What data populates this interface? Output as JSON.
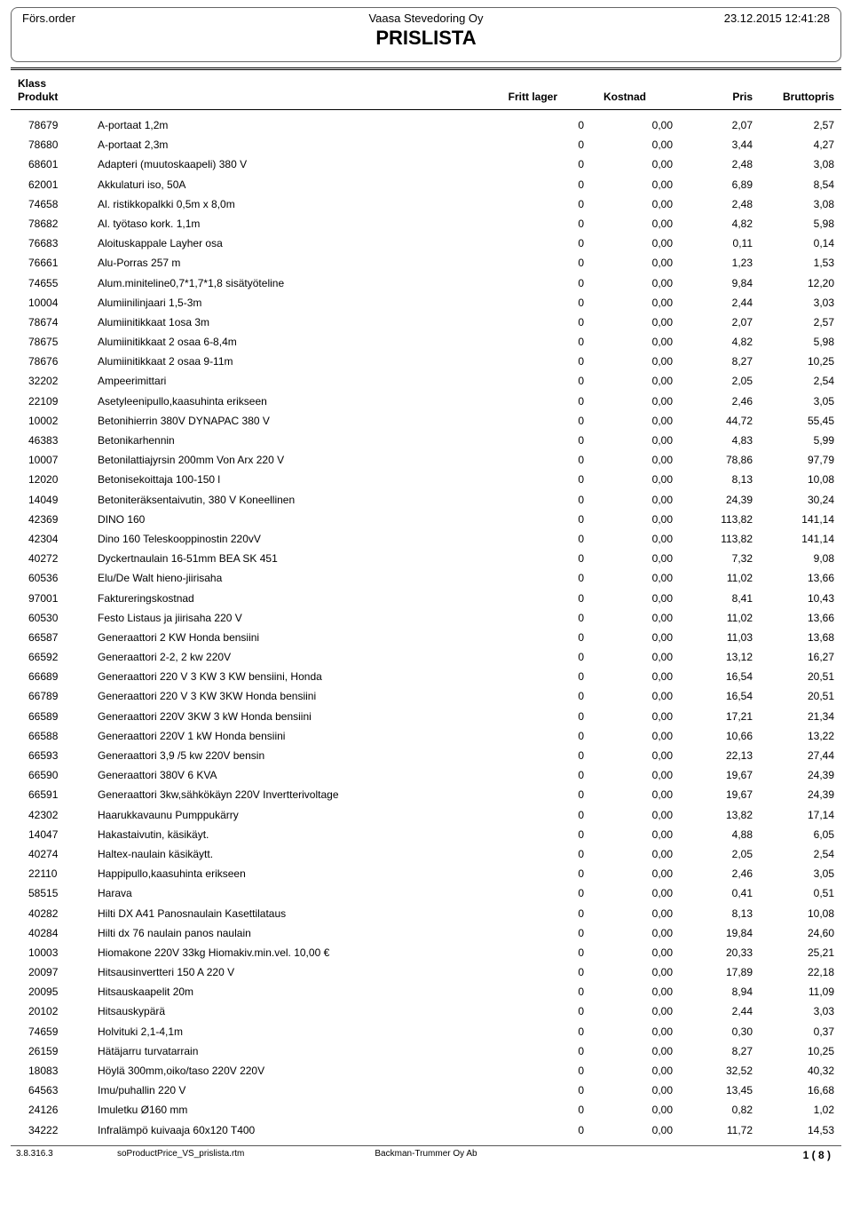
{
  "header": {
    "left": "Förs.order",
    "company": "Vaasa Stevedoring Oy",
    "title": "PRISLISTA",
    "datetime": "23.12.2015 12:41:28"
  },
  "columns": {
    "klass": "Klass",
    "produkt": "Produkt",
    "fritt": "Fritt lager",
    "kostnad": "Kostnad",
    "pris": "Pris",
    "brutto": "Bruttopris"
  },
  "rows": [
    {
      "code": "78679",
      "name": "A-portaat 1,2m",
      "fritt": "0",
      "kost": "0,00",
      "pris": "2,07",
      "brutto": "2,57"
    },
    {
      "code": "78680",
      "name": "A-portaat 2,3m",
      "fritt": "0",
      "kost": "0,00",
      "pris": "3,44",
      "brutto": "4,27"
    },
    {
      "code": "68601",
      "name": "Adapteri (muutoskaapeli) 380 V",
      "fritt": "0",
      "kost": "0,00",
      "pris": "2,48",
      "brutto": "3,08"
    },
    {
      "code": "62001",
      "name": "Akkulaturi iso, 50A",
      "fritt": "0",
      "kost": "0,00",
      "pris": "6,89",
      "brutto": "8,54"
    },
    {
      "code": "74658",
      "name": "Al. ristikkopalkki  0,5m x 8,0m",
      "fritt": "0",
      "kost": "0,00",
      "pris": "2,48",
      "brutto": "3,08"
    },
    {
      "code": "78682",
      "name": "Al. työtaso kork. 1,1m",
      "fritt": "0",
      "kost": "0,00",
      "pris": "4,82",
      "brutto": "5,98"
    },
    {
      "code": "76683",
      "name": "Aloituskappale Layher osa",
      "fritt": "0",
      "kost": "0,00",
      "pris": "0,11",
      "brutto": "0,14"
    },
    {
      "code": "76661",
      "name": "Alu-Porras 257 m",
      "fritt": "0",
      "kost": "0,00",
      "pris": "1,23",
      "brutto": "1,53"
    },
    {
      "code": "74655",
      "name": "Alum.miniteline0,7*1,7*1,8  sisätyöteline",
      "fritt": "0",
      "kost": "0,00",
      "pris": "9,84",
      "brutto": "12,20"
    },
    {
      "code": "10004",
      "name": "Alumiinilinjaari 1,5-3m",
      "fritt": "0",
      "kost": "0,00",
      "pris": "2,44",
      "brutto": "3,03"
    },
    {
      "code": "78674",
      "name": "Alumiinitikkaat  1osa 3m",
      "fritt": "0",
      "kost": "0,00",
      "pris": "2,07",
      "brutto": "2,57"
    },
    {
      "code": "78675",
      "name": "Alumiinitikkaat  2 osaa 6-8,4m",
      "fritt": "0",
      "kost": "0,00",
      "pris": "4,82",
      "brutto": "5,98"
    },
    {
      "code": "78676",
      "name": "Alumiinitikkaat  2 osaa 9-11m",
      "fritt": "0",
      "kost": "0,00",
      "pris": "8,27",
      "brutto": "10,25"
    },
    {
      "code": "32202",
      "name": "Ampeerimittari",
      "fritt": "0",
      "kost": "0,00",
      "pris": "2,05",
      "brutto": "2,54"
    },
    {
      "code": "22109",
      "name": "Asetyleenipullo,kaasuhinta erikseen",
      "fritt": "0",
      "kost": "0,00",
      "pris": "2,46",
      "brutto": "3,05"
    },
    {
      "code": "10002",
      "name": "Betonihierrin 380V   DYNAPAC 380 V",
      "fritt": "0",
      "kost": "0,00",
      "pris": "44,72",
      "brutto": "55,45"
    },
    {
      "code": "46383",
      "name": "Betonikarhennin",
      "fritt": "0",
      "kost": "0,00",
      "pris": "4,83",
      "brutto": "5,99"
    },
    {
      "code": "10007",
      "name": "Betonilattiajyrsin 200mm  Von Arx 220 V",
      "fritt": "0",
      "kost": "0,00",
      "pris": "78,86",
      "brutto": "97,79"
    },
    {
      "code": "12020",
      "name": "Betonisekoittaja 100-150 l",
      "fritt": "0",
      "kost": "0,00",
      "pris": "8,13",
      "brutto": "10,08"
    },
    {
      "code": "14049",
      "name": "Betoniteräksentaivutin, 380 V  Koneellinen",
      "fritt": "0",
      "kost": "0,00",
      "pris": "24,39",
      "brutto": "30,24"
    },
    {
      "code": "42369",
      "name": "DINO 160",
      "fritt": "0",
      "kost": "0,00",
      "pris": "113,82",
      "brutto": "141,14"
    },
    {
      "code": "42304",
      "name": "Dino 160 Teleskooppinostin  220vV",
      "fritt": "0",
      "kost": "0,00",
      "pris": "113,82",
      "brutto": "141,14"
    },
    {
      "code": "40272",
      "name": "Dyckertnaulain 16-51mm  BEA SK 451",
      "fritt": "0",
      "kost": "0,00",
      "pris": "7,32",
      "brutto": "9,08"
    },
    {
      "code": "60536",
      "name": "Elu/De Walt hieno-jiirisaha",
      "fritt": "0",
      "kost": "0,00",
      "pris": "11,02",
      "brutto": "13,66"
    },
    {
      "code": "97001",
      "name": "Faktureringskostnad",
      "fritt": "0",
      "kost": "0,00",
      "pris": "8,41",
      "brutto": "10,43"
    },
    {
      "code": "60530",
      "name": "Festo Listaus ja jiirisaha  220 V",
      "fritt": "0",
      "kost": "0,00",
      "pris": "11,02",
      "brutto": "13,66"
    },
    {
      "code": "66587",
      "name": "Generaattori 2 KW  Honda bensiini",
      "fritt": "0",
      "kost": "0,00",
      "pris": "11,03",
      "brutto": "13,68"
    },
    {
      "code": "66592",
      "name": "Generaattori 2-2, 2 kw 220V",
      "fritt": "0",
      "kost": "0,00",
      "pris": "13,12",
      "brutto": "16,27"
    },
    {
      "code": "66689",
      "name": "Generaattori 220 V  3 KW     3 KW bensiini, Honda",
      "fritt": "0",
      "kost": "0,00",
      "pris": "16,54",
      "brutto": "20,51"
    },
    {
      "code": "66789",
      "name": "Generaattori 220 V 3 KW  3KW Honda bensiini",
      "fritt": "0",
      "kost": "0,00",
      "pris": "16,54",
      "brutto": "20,51"
    },
    {
      "code": "66589",
      "name": "Generaattori 220V    3KW  3 kW Honda bensiini",
      "fritt": "0",
      "kost": "0,00",
      "pris": "17,21",
      "brutto": "21,34"
    },
    {
      "code": "66588",
      "name": "Generaattori 220V  1 kW Honda bensiini",
      "fritt": "0",
      "kost": "0,00",
      "pris": "10,66",
      "brutto": "13,22"
    },
    {
      "code": "66593",
      "name": "Generaattori 3,9 /5 kw 220V  bensin",
      "fritt": "0",
      "kost": "0,00",
      "pris": "22,13",
      "brutto": "27,44"
    },
    {
      "code": "66590",
      "name": "Generaattori 380V  6 KVA",
      "fritt": "0",
      "kost": "0,00",
      "pris": "19,67",
      "brutto": "24,39"
    },
    {
      "code": "66591",
      "name": "Generaattori 3kw,sähkökäyn 220V  Invertterivoltage",
      "fritt": "0",
      "kost": "0,00",
      "pris": "19,67",
      "brutto": "24,39"
    },
    {
      "code": "42302",
      "name": "Haarukkavaunu  Pumppukärry",
      "fritt": "0",
      "kost": "0,00",
      "pris": "13,82",
      "brutto": "17,14"
    },
    {
      "code": "14047",
      "name": "Hakastaivutin, käsikäyt.",
      "fritt": "0",
      "kost": "0,00",
      "pris": "4,88",
      "brutto": "6,05"
    },
    {
      "code": "40274",
      "name": "Haltex-naulain käsikäytt.",
      "fritt": "0",
      "kost": "0,00",
      "pris": "2,05",
      "brutto": "2,54"
    },
    {
      "code": "22110",
      "name": "Happipullo,kaasuhinta erikseen",
      "fritt": "0",
      "kost": "0,00",
      "pris": "2,46",
      "brutto": "3,05"
    },
    {
      "code": "58515",
      "name": "Harava",
      "fritt": "0",
      "kost": "0,00",
      "pris": "0,41",
      "brutto": "0,51"
    },
    {
      "code": "40282",
      "name": "Hilti DX A41 Panosnaulain  Kasettilataus",
      "fritt": "0",
      "kost": "0,00",
      "pris": "8,13",
      "brutto": "10,08"
    },
    {
      "code": "40284",
      "name": "Hilti dx 76 naulain  panos naulain",
      "fritt": "0",
      "kost": "0,00",
      "pris": "19,84",
      "brutto": "24,60"
    },
    {
      "code": "10003",
      "name": "Hiomakone 220V 33kg  Hiomakiv.min.vel. 10,00 €",
      "fritt": "0",
      "kost": "0,00",
      "pris": "20,33",
      "brutto": "25,21"
    },
    {
      "code": "20097",
      "name": "Hitsausinvertteri 150 A  220 V",
      "fritt": "0",
      "kost": "0,00",
      "pris": "17,89",
      "brutto": "22,18"
    },
    {
      "code": "20095",
      "name": "Hitsauskaapelit 20m",
      "fritt": "0",
      "kost": "0,00",
      "pris": "8,94",
      "brutto": "11,09"
    },
    {
      "code": "20102",
      "name": "Hitsauskypärä",
      "fritt": "0",
      "kost": "0,00",
      "pris": "2,44",
      "brutto": "3,03"
    },
    {
      "code": "74659",
      "name": "Holvituki 2,1-4,1m",
      "fritt": "0",
      "kost": "0,00",
      "pris": "0,30",
      "brutto": "0,37"
    },
    {
      "code": "26159",
      "name": "Hätäjarru turvatarrain",
      "fritt": "0",
      "kost": "0,00",
      "pris": "8,27",
      "brutto": "10,25"
    },
    {
      "code": "18083",
      "name": "Höylä 300mm,oiko/taso 220V  220V",
      "fritt": "0",
      "kost": "0,00",
      "pris": "32,52",
      "brutto": "40,32"
    },
    {
      "code": "64563",
      "name": "Imu/puhallin 220 V",
      "fritt": "0",
      "kost": "0,00",
      "pris": "13,45",
      "brutto": "16,68"
    },
    {
      "code": "24126",
      "name": "Imuletku Ø160 mm",
      "fritt": "0",
      "kost": "0,00",
      "pris": "0,82",
      "brutto": "1,02"
    },
    {
      "code": "34222",
      "name": "Infralämpö kuivaaja 60x120 T400",
      "fritt": "0",
      "kost": "0,00",
      "pris": "11,72",
      "brutto": "14,53"
    }
  ],
  "footer": {
    "version": "3.8.316.3",
    "report": "soProductPrice_VS_prislista.rtm",
    "company": "Backman-Trummer Oy Ab",
    "page": "1  (  8  )"
  }
}
